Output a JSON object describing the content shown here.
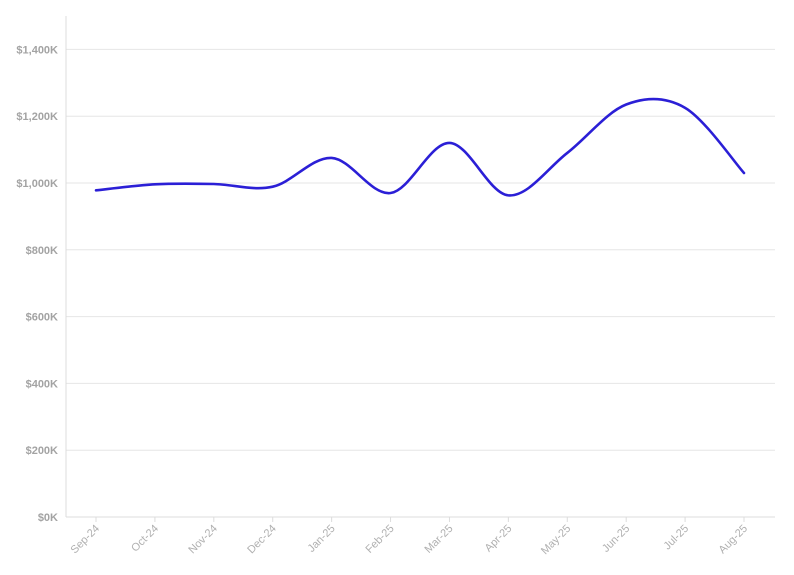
{
  "chart_data": {
    "type": "line",
    "categories": [
      "Sep-24",
      "Oct-24",
      "Nov-24",
      "Dec-24",
      "Jan-25",
      "Feb-25",
      "Mar-25",
      "Apr-25",
      "May-25",
      "Jun-25",
      "Jul-25",
      "Aug-25"
    ],
    "series": [
      {
        "values": [
          978,
          996,
          997,
          989,
          1075,
          970,
          1120,
          963,
          1090,
          1235,
          1225,
          1030
        ]
      }
    ],
    "ylim": [
      0,
      1500
    ],
    "yticks": [
      0,
      200,
      400,
      600,
      800,
      1000,
      1200,
      1400
    ],
    "ytick_labels": [
      "$0K",
      "$200K",
      "$400K",
      "$600K",
      "$800K",
      "$1,000K",
      "$1,200K",
      "$1,400K"
    ],
    "grid": true,
    "line_color": "#2b1fd6"
  }
}
